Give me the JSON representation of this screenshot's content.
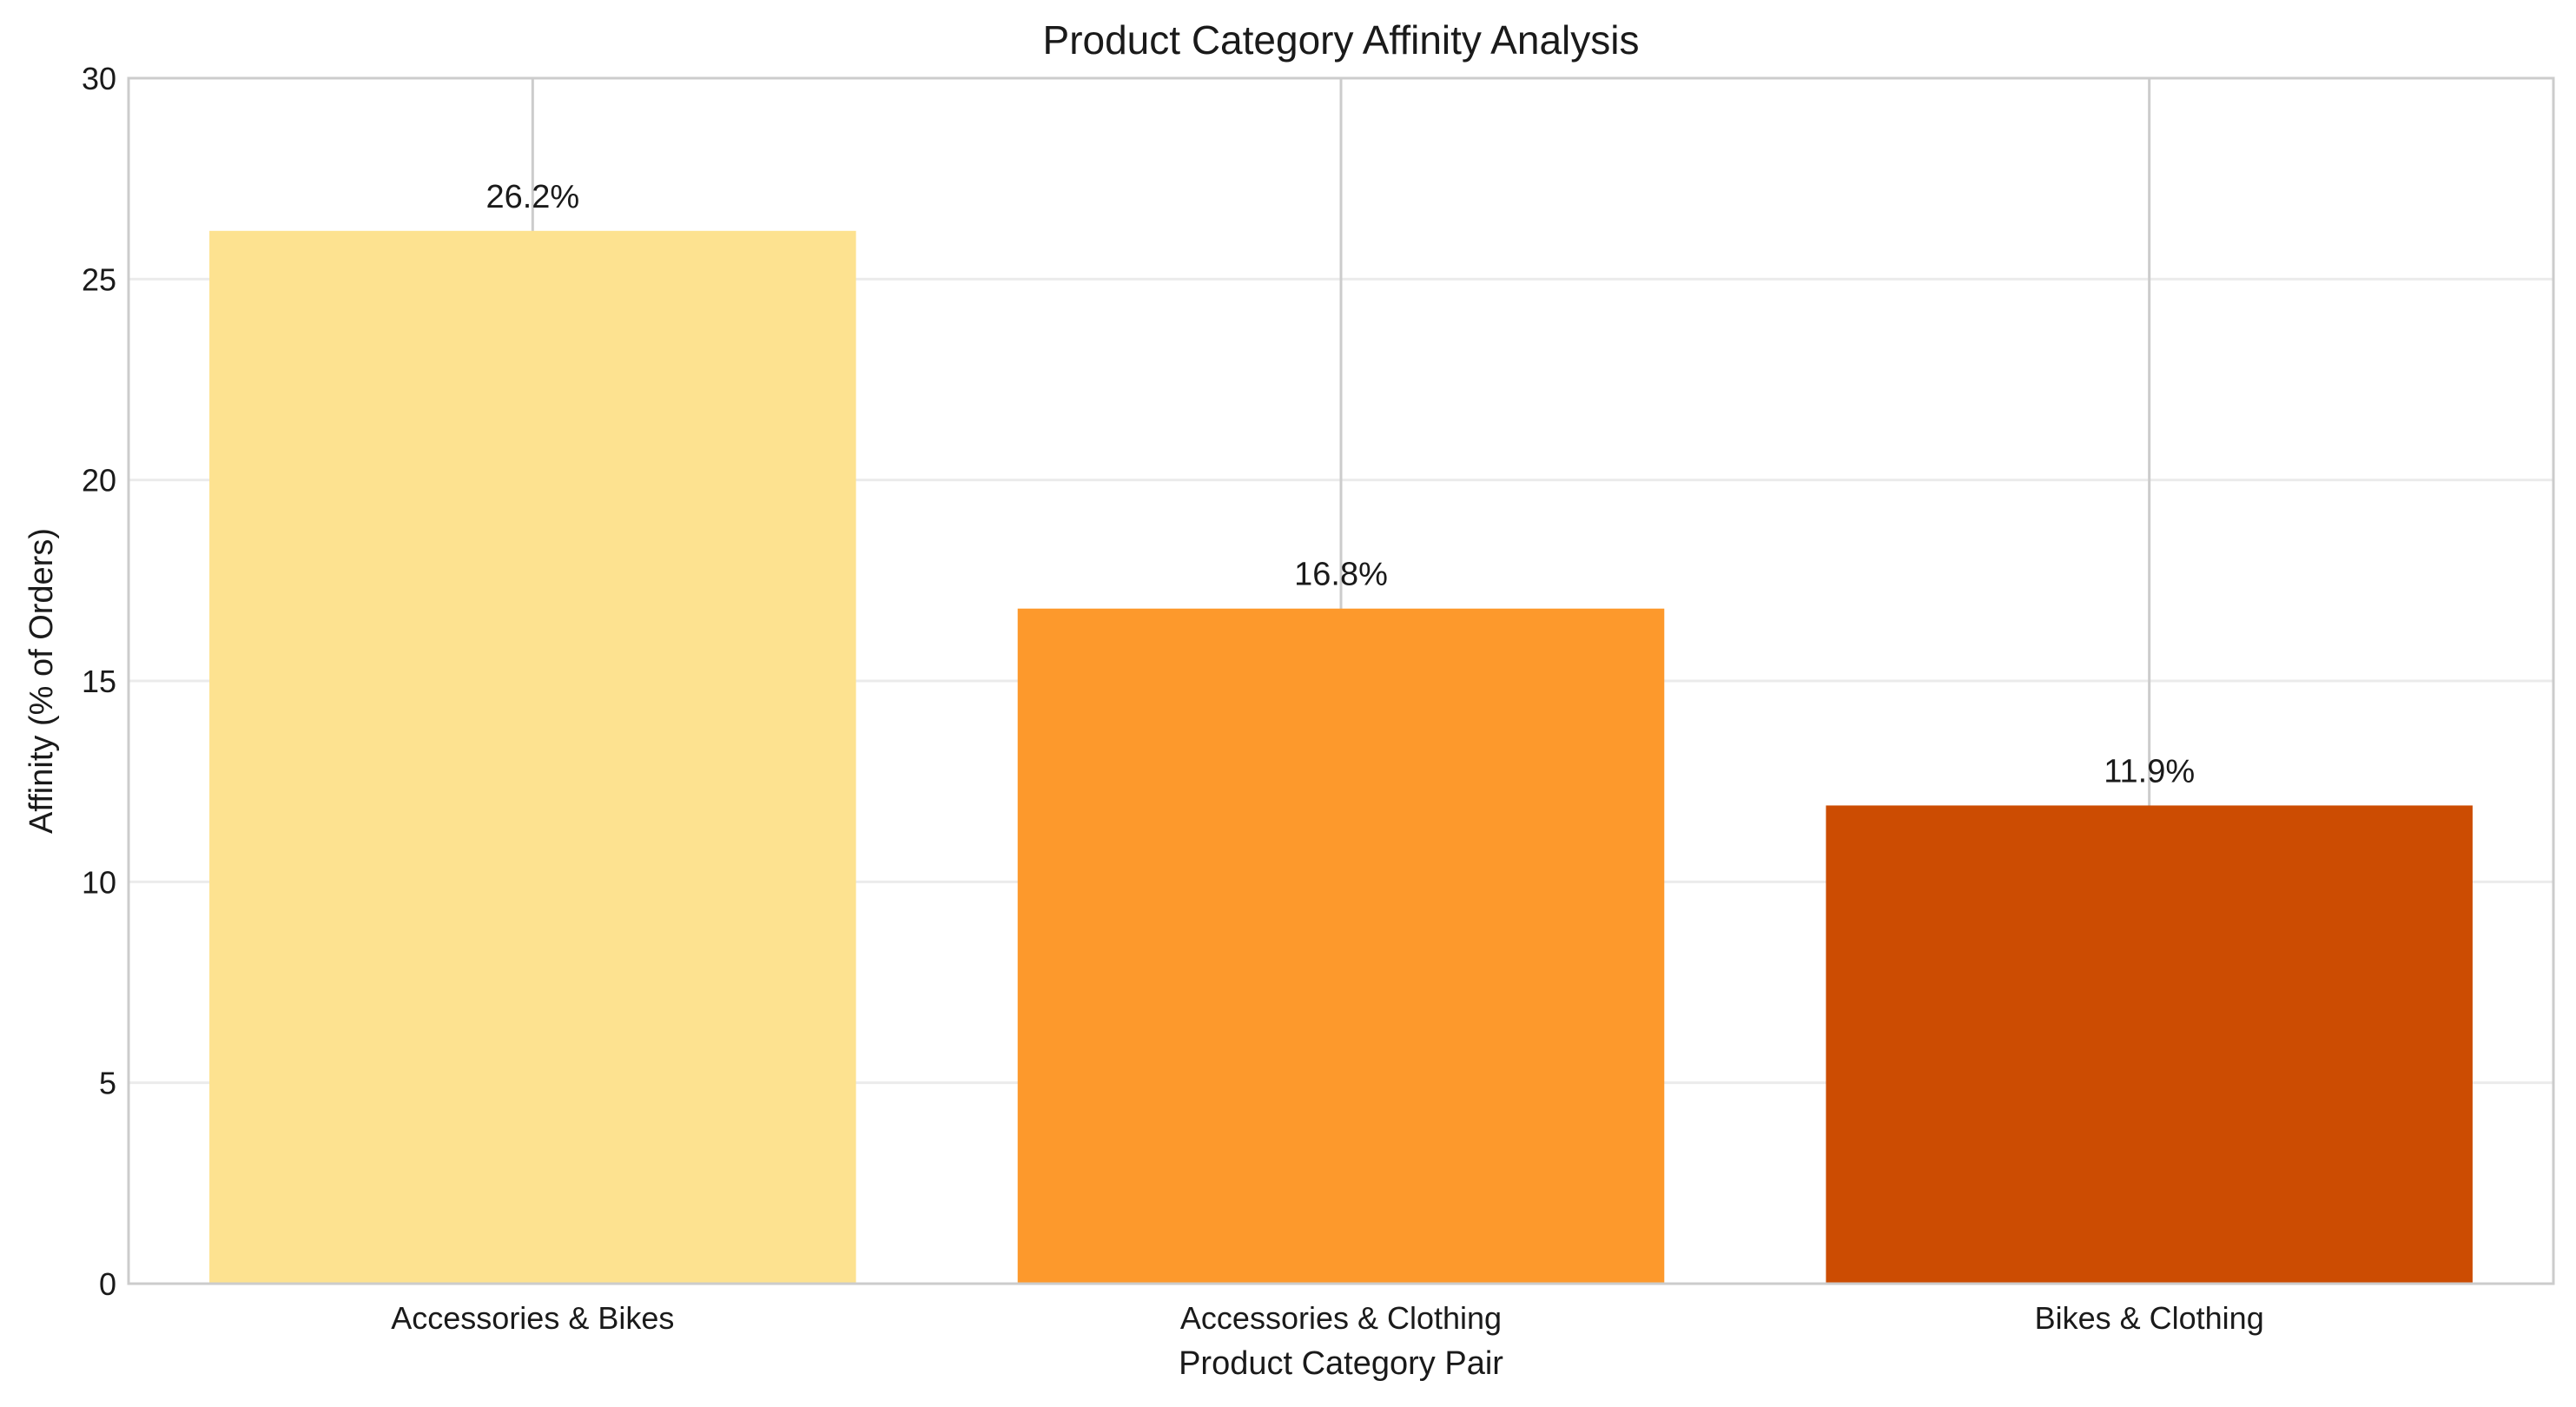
{
  "chart_data": {
    "type": "bar",
    "title": "Product Category Affinity Analysis",
    "xlabel": "Product Category Pair",
    "ylabel": "Affinity (% of Orders)",
    "categories": [
      "Accessories & Bikes",
      "Accessories & Clothing",
      "Bikes & Clothing"
    ],
    "values": [
      26.2,
      16.8,
      11.9
    ],
    "value_labels": [
      "26.2%",
      "16.8%",
      "11.9%"
    ],
    "colors": [
      "#fde290",
      "#fd992c",
      "#cc4c02"
    ],
    "ylim": [
      0,
      30
    ],
    "yticks": [
      0,
      5,
      10,
      15,
      20,
      25,
      30
    ],
    "grid": true,
    "legend": "none"
  }
}
